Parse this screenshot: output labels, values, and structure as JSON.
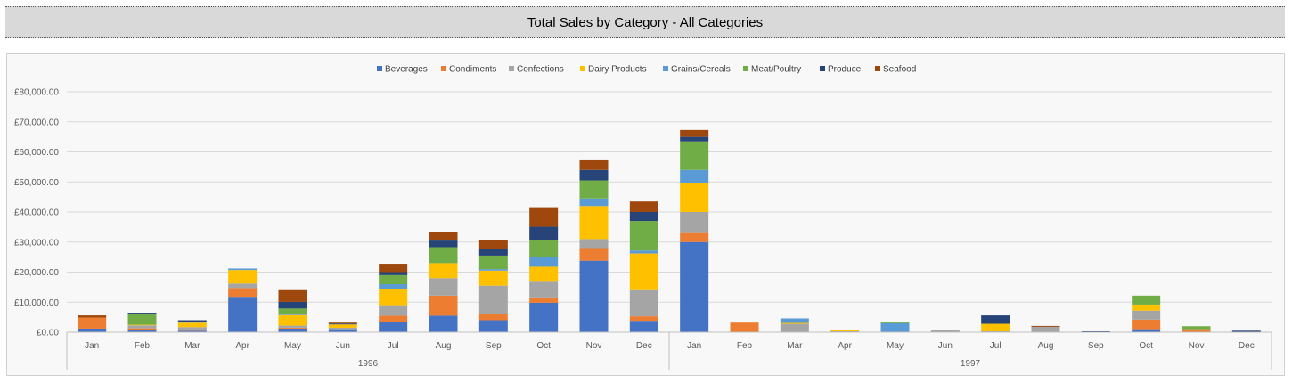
{
  "page_title": "Total Sales by Category - All Categories",
  "chart_data": {
    "type": "bar",
    "stacked": true,
    "title": "Total Sales by Category - All Categories",
    "ylim": [
      0,
      80000
    ],
    "y_ticks": [
      "£0.00",
      "£10,000.00",
      "£20,000.00",
      "£30,000.00",
      "£40,000.00",
      "£50,000.00",
      "£60,000.00",
      "£70,000.00",
      "£80,000.00"
    ],
    "y_tick_values": [
      0,
      10000,
      20000,
      30000,
      40000,
      50000,
      60000,
      70000,
      80000
    ],
    "legend_position": "top",
    "groups": [
      {
        "label": "1996",
        "count": 12
      },
      {
        "label": "1997",
        "count": 12
      }
    ],
    "categories": [
      "Jan",
      "Feb",
      "Mar",
      "Apr",
      "May",
      "Jun",
      "Jul",
      "Aug",
      "Sep",
      "Oct",
      "Nov",
      "Dec",
      "Jan",
      "Feb",
      "Mar",
      "Apr",
      "May",
      "Jun",
      "Jul",
      "Aug",
      "Sep",
      "Oct",
      "Nov",
      "Dec"
    ],
    "series": [
      {
        "name": "Beverages",
        "color": "#4472c4",
        "values": [
          1200,
          600,
          500,
          11500,
          1200,
          1000,
          3500,
          5500,
          4000,
          9800,
          23800,
          3800,
          30000,
          0,
          0,
          0,
          0,
          0,
          0,
          0,
          0,
          1000,
          0,
          0
        ]
      },
      {
        "name": "Condiments",
        "color": "#ed7d31",
        "values": [
          3700,
          700,
          400,
          3200,
          300,
          0,
          2000,
          6700,
          2000,
          1500,
          4200,
          1500,
          3000,
          3200,
          0,
          0,
          0,
          0,
          0,
          0,
          0,
          3200,
          1000,
          0
        ]
      },
      {
        "name": "Confections",
        "color": "#a5a5a5",
        "values": [
          0,
          1000,
          800,
          1500,
          700,
          500,
          3500,
          5800,
          9500,
          5500,
          3000,
          8700,
          7000,
          0,
          2800,
          300,
          0,
          700,
          300,
          1800,
          0,
          3000,
          0,
          0
        ]
      },
      {
        "name": "Dairy Products",
        "color": "#ffc000",
        "values": [
          0,
          200,
          1500,
          4500,
          3500,
          1100,
          5500,
          5000,
          5000,
          5000,
          11000,
          12200,
          9500,
          0,
          300,
          500,
          0,
          0,
          2500,
          0,
          0,
          2000,
          0,
          0
        ]
      },
      {
        "name": "Grains/Cereals",
        "color": "#5b9bd5",
        "values": [
          0,
          0,
          300,
          500,
          200,
          0,
          1500,
          0,
          500,
          3200,
          2500,
          1000,
          4500,
          0,
          1500,
          0,
          3000,
          0,
          0,
          0,
          0,
          0,
          0,
          0
        ]
      },
      {
        "name": "Meat/Poultry",
        "color": "#70ad47",
        "values": [
          0,
          3500,
          0,
          0,
          2000,
          0,
          3000,
          5300,
          4500,
          5800,
          6000,
          9800,
          9500,
          0,
          0,
          0,
          500,
          0,
          0,
          0,
          0,
          3000,
          1000,
          0
        ]
      },
      {
        "name": "Produce",
        "color": "#264478",
        "values": [
          0,
          500,
          500,
          0,
          2200,
          300,
          1000,
          2200,
          2300,
          4300,
          3500,
          3000,
          1500,
          0,
          0,
          0,
          0,
          0,
          2800,
          0,
          300,
          0,
          0,
          500
        ]
      },
      {
        "name": "Seafood",
        "color": "#9e480e",
        "values": [
          700,
          0,
          0,
          0,
          3900,
          300,
          2800,
          2900,
          2800,
          6500,
          3200,
          3500,
          2300,
          0,
          0,
          0,
          0,
          0,
          0,
          300,
          0,
          0,
          0,
          0
        ]
      }
    ]
  }
}
